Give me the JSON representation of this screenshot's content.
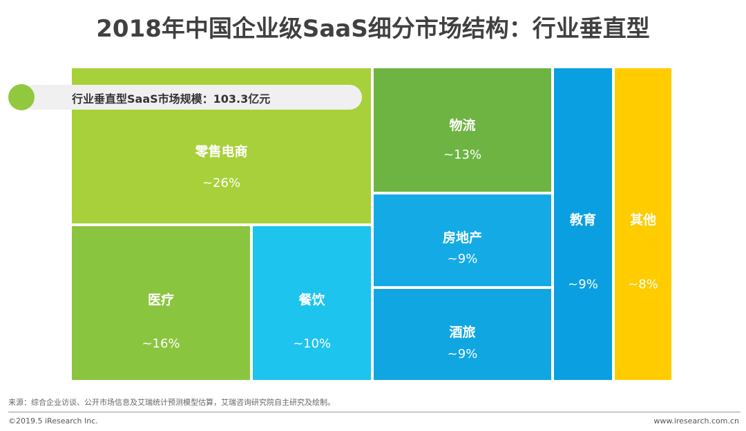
{
  "header": {
    "title": "2018年中国企业级SaaS细分市场结构：行业垂直型"
  },
  "banner": {
    "text": "行业垂直型SaaS市场规模：103.3亿元"
  },
  "chart_data": {
    "type": "treemap",
    "title": "2018年中国企业级SaaS细分市场结构：行业垂直型",
    "total_label": "行业垂直型SaaS市场规模：103.3亿元",
    "cells": [
      {
        "id": "retail",
        "label": "零售电商",
        "value": "~26%",
        "percent": 26,
        "color": "#a8d03a",
        "text_color": "#ffffff"
      },
      {
        "id": "medical",
        "label": "医疗",
        "value": "~16%",
        "percent": 16,
        "color": "#8ac53f",
        "text_color": "#ffffff"
      },
      {
        "id": "catering",
        "label": "餐饮",
        "value": "~10%",
        "percent": 10,
        "color": "#1dc4ee",
        "text_color": "#ffffff"
      },
      {
        "id": "logistics",
        "label": "物流",
        "value": "~13%",
        "percent": 13,
        "color": "#6db443",
        "text_color": "#ffffff"
      },
      {
        "id": "realestate",
        "label": "房地产",
        "value": "~9%",
        "percent": 9,
        "color": "#14aae6",
        "text_color": "#ffffff"
      },
      {
        "id": "hotel",
        "label": "酒旅",
        "value": "~9%",
        "percent": 9,
        "color": "#10a6e2",
        "text_color": "#ffffff"
      },
      {
        "id": "education",
        "label": "教育",
        "value": "~9%",
        "percent": 9,
        "color": "#0a9fe0",
        "text_color": "#ffffff"
      },
      {
        "id": "other",
        "label": "其他",
        "value": "~8%",
        "percent": 8,
        "color": "#ffcc00",
        "text_color": "#ffffff"
      }
    ]
  },
  "footer": {
    "source": "来源：综合企业访谈、公开市场信息及艾瑞统计预测模型估算，艾瑞咨询研究院自主研究及绘制。",
    "copyright": "©2019.5 iResearch Inc.",
    "website": "www.iresearch.com.cn"
  }
}
